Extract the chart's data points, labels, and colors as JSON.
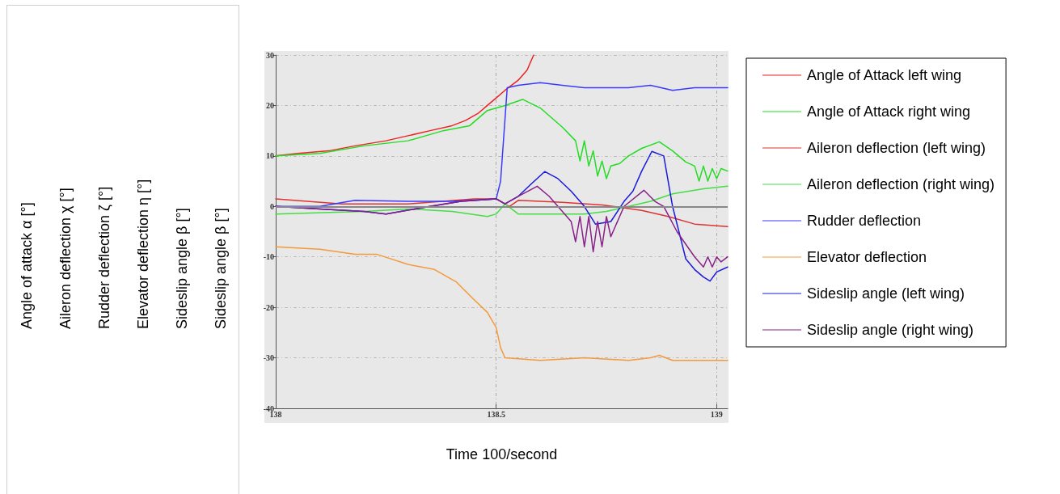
{
  "chart_data": {
    "type": "line",
    "xlabel": "Time 100/second",
    "annotations": [
      "Angle of attack α [°]",
      "Aileron deflection χ [°]",
      "Rudder deflection ζ [°]",
      "Elevator deflection η [°]",
      "Sideslip angle β [°]",
      "Sideslip angle β [°]"
    ],
    "xlim": [
      138,
      139.025
    ],
    "xticks": [
      138,
      138.5,
      139
    ],
    "ylim": [
      -40,
      30
    ],
    "yticks": [
      -40,
      -30,
      -20,
      -10,
      0,
      10,
      20,
      30
    ],
    "grid": true,
    "legend": "right",
    "marker": "none",
    "line_style": "solid",
    "ref_lines": [
      {
        "axis": "y",
        "value": 0,
        "color": "#888888"
      }
    ],
    "series": [
      {
        "name": "Angle of Attack left wing",
        "color": "#ee2222",
        "x": [
          138,
          138.05,
          138.12,
          138.18,
          138.25,
          138.3,
          138.35,
          138.4,
          138.43,
          138.46,
          138.48,
          138.5,
          138.52,
          138.55,
          138.57,
          138.585
        ],
        "values": [
          10,
          10.5,
          11,
          12,
          13,
          14,
          15,
          16,
          17,
          18.5,
          20,
          21.5,
          23,
          25,
          27,
          30
        ]
      },
      {
        "name": "Angle of Attack right wing",
        "color": "#22dd22",
        "x": [
          138,
          138.1,
          138.2,
          138.3,
          138.38,
          138.44,
          138.48,
          138.52,
          138.56,
          138.6,
          138.65,
          138.68,
          138.69,
          138.7,
          138.71,
          138.72,
          138.73,
          138.74,
          138.75,
          138.76,
          138.78,
          138.8,
          138.83,
          138.87,
          138.9,
          138.93,
          138.95,
          138.96,
          138.97,
          138.98,
          138.99,
          139,
          139.01,
          139.025
        ],
        "values": [
          10,
          10.5,
          12,
          13,
          15,
          16,
          19,
          20,
          21.2,
          19.5,
          15.7,
          13,
          9,
          13,
          8,
          11,
          6,
          9,
          5.5,
          8,
          8.5,
          10,
          11.5,
          12.8,
          11,
          8.8,
          8,
          5,
          8,
          5,
          7.5,
          5.5,
          7.5,
          7
        ]
      },
      {
        "name": "Aileron deflection (left wing)",
        "color": "#dd3333",
        "x": [
          138,
          138.15,
          138.3,
          138.45,
          138.5,
          138.51,
          138.53,
          138.55,
          138.65,
          138.74,
          138.83,
          138.89,
          138.95,
          139.025
        ],
        "values": [
          1.5,
          0.5,
          0.5,
          1.5,
          1.5,
          1,
          0,
          1.2,
          0.8,
          0.3,
          -0.8,
          -2,
          -3.5,
          -4
        ]
      },
      {
        "name": "Aileron deflection (right wing)",
        "color": "#44dd44",
        "x": [
          138,
          138.2,
          138.3,
          138.4,
          138.48,
          138.5,
          138.52,
          138.55,
          138.7,
          138.75,
          138.8,
          138.85,
          138.9,
          138.97,
          139.025
        ],
        "values": [
          -1.5,
          -1,
          -0.5,
          -1,
          -2,
          -1.5,
          0.5,
          -1.5,
          -1.5,
          -1,
          0,
          1,
          2.5,
          3.5,
          4
        ]
      },
      {
        "name": "Rudder deflection",
        "color": "#3a3aff",
        "x": [
          138,
          138.1,
          138.18,
          138.3,
          138.4,
          138.5,
          138.51,
          138.525,
          138.55,
          138.6,
          138.65,
          138.7,
          138.8,
          138.85,
          138.9,
          138.95,
          139.025
        ],
        "values": [
          0,
          0,
          1.2,
          1,
          1,
          1.5,
          5,
          23.5,
          24,
          24.5,
          24,
          23.5,
          23.5,
          24,
          23,
          23.5,
          23.5
        ]
      },
      {
        "name": "Elevator deflection",
        "color": "#f39a3c",
        "x": [
          138,
          138.1,
          138.18,
          138.23,
          138.3,
          138.36,
          138.41,
          138.45,
          138.48,
          138.5,
          138.51,
          138.52,
          138.6,
          138.7,
          138.8,
          138.85,
          138.87,
          138.9,
          139.025
        ],
        "values": [
          -8,
          -8.5,
          -9.5,
          -9.5,
          -11.5,
          -12.5,
          -15,
          -18.5,
          -21,
          -24,
          -28,
          -30,
          -30.5,
          -30,
          -30.5,
          -30,
          -29.5,
          -30.5,
          -30.5
        ]
      },
      {
        "name": "Sideslip angle (left wing)",
        "color": "#1a1add",
        "x": [
          138,
          138.1,
          138.2,
          138.25,
          138.35,
          138.42,
          138.5,
          138.52,
          138.55,
          138.58,
          138.61,
          138.64,
          138.67,
          138.7,
          138.725,
          138.76,
          138.79,
          138.81,
          138.83,
          138.853,
          138.88,
          138.9,
          138.93,
          138.95,
          138.97,
          138.985,
          139,
          139.025
        ],
        "values": [
          0,
          -0.5,
          -1,
          -1.5,
          0,
          1,
          1.5,
          0.5,
          2,
          4.5,
          6.9,
          5.5,
          3,
          0,
          -3.5,
          -3,
          1,
          3,
          7,
          10.9,
          10,
          0,
          -10.4,
          -12.5,
          -14,
          -14.8,
          -13,
          -12
        ]
      },
      {
        "name": "Sideslip angle (right wing)",
        "color": "#882288",
        "x": [
          138,
          138.1,
          138.2,
          138.25,
          138.35,
          138.42,
          138.5,
          138.52,
          138.55,
          138.593,
          138.62,
          138.64,
          138.67,
          138.68,
          138.69,
          138.7,
          138.71,
          138.72,
          138.73,
          138.74,
          138.75,
          138.76,
          138.79,
          138.835,
          138.86,
          138.88,
          138.91,
          138.95,
          138.97,
          138.98,
          138.99,
          139,
          139.01,
          139.025
        ],
        "values": [
          0,
          -0.5,
          -1,
          -1.5,
          0,
          1,
          1.5,
          0.5,
          2,
          4,
          2,
          0,
          -3,
          -7,
          -2,
          -8,
          -2,
          -9,
          -3,
          -8,
          -2,
          -6,
          0,
          3.2,
          1,
          0,
          -5,
          -10,
          -12,
          -10,
          -12,
          -10,
          -11,
          -10
        ]
      }
    ]
  }
}
